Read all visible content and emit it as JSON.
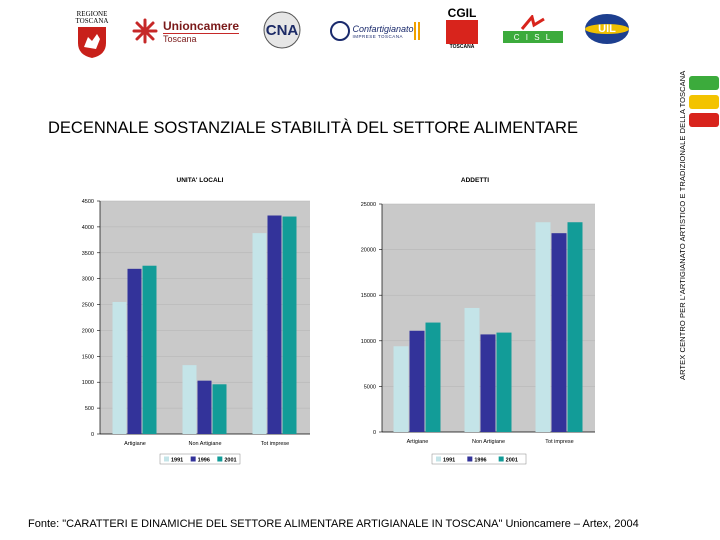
{
  "header": {
    "logos": [
      {
        "name": "regione-toscana-logo",
        "text": "REGIONE TOSCANA"
      },
      {
        "name": "unioncamere-logo",
        "line1": "Unioncamere",
        "line2": "Toscana"
      },
      {
        "name": "cna-logo",
        "text": "CNA"
      },
      {
        "name": "confartigianato-logo",
        "line1": "Confartigianato",
        "line2": "IMPRESE TOSCANA"
      },
      {
        "name": "cgil-logo",
        "line1": "CGIL",
        "line2": "TOSCANA"
      },
      {
        "name": "cisl-logo",
        "text": "C I S L"
      },
      {
        "name": "uil-logo",
        "text": "UIL"
      }
    ]
  },
  "side_text": "ARTEX CENTRO PER L'ARTIGIANATO ARTISTICO E TRADIZIONALE DELLA TOSCANA",
  "colors": {
    "swatch_green": "#3cab3c",
    "swatch_yellow": "#f3c300",
    "swatch_red": "#d8241c",
    "series_1991": "#c4e4e8",
    "series_1996": "#33339a",
    "series_2001": "#129c98",
    "plot_bg": "#c9c9c9"
  },
  "title": "DECENNALE SOSTANZIALE STABILITÀ DEL SETTORE ALIMENTARE",
  "footer": "Fonte: \"CARATTERI E DINAMICHE DEL SETTORE ALIMENTARE ARTIGIANALE IN TOSCANA\" Unioncamere – Artex, 2004",
  "chart_data": [
    {
      "type": "bar",
      "title": "UNITA' LOCALI",
      "categories": [
        "Artigiane",
        "Non Artigiane",
        "Tot imprese"
      ],
      "series": [
        {
          "name": "1991",
          "values": [
            2550,
            1330,
            3880
          ]
        },
        {
          "name": "1996",
          "values": [
            3190,
            1030,
            4220
          ]
        },
        {
          "name": "2001",
          "values": [
            3250,
            960,
            4200
          ]
        }
      ],
      "yticks": [
        "0",
        "500",
        "1000",
        "1500",
        "2000",
        "2500",
        "3000",
        "3500",
        "4000",
        "4500"
      ],
      "ylim": [
        0,
        4500
      ],
      "legend": "bottom"
    },
    {
      "type": "bar",
      "title": "ADDETTI",
      "categories": [
        "Artigiane",
        "Non Artigiane",
        "Tot imprese"
      ],
      "series": [
        {
          "name": "1991",
          "values": [
            9400,
            13600,
            23000
          ]
        },
        {
          "name": "1996",
          "values": [
            11100,
            10700,
            21800
          ]
        },
        {
          "name": "2001",
          "values": [
            12000,
            10900,
            23000
          ]
        }
      ],
      "yticks": [
        "0",
        "5000",
        "10000",
        "15000",
        "20000",
        "25000"
      ],
      "ylim": [
        0,
        25000
      ],
      "legend": "bottom"
    }
  ]
}
